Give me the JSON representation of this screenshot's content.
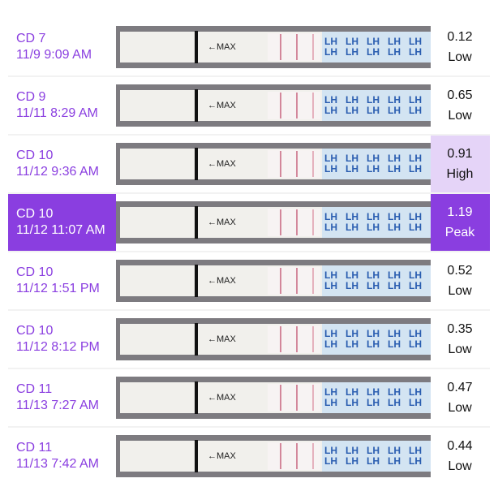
{
  "strip_label": "←MAX",
  "strip_brand": "LH",
  "rows": [
    {
      "cycle_day": "CD 7",
      "datetime": "11/9 9:09 AM",
      "value": 0.12,
      "level": "Low"
    },
    {
      "cycle_day": "CD 9",
      "datetime": "11/11 8:29 AM",
      "value": 0.65,
      "level": "Low"
    },
    {
      "cycle_day": "CD 10",
      "datetime": "11/12 9:36 AM",
      "value": 0.91,
      "level": "High"
    },
    {
      "cycle_day": "CD 10",
      "datetime": "11/12 11:07 AM",
      "value": 1.19,
      "level": "Peak"
    },
    {
      "cycle_day": "CD 10",
      "datetime": "11/12 1:51 PM",
      "value": 0.52,
      "level": "Low"
    },
    {
      "cycle_day": "CD 10",
      "datetime": "11/12 8:12 PM",
      "value": 0.35,
      "level": "Low"
    },
    {
      "cycle_day": "CD 11",
      "datetime": "11/13 7:27 AM",
      "value": 0.47,
      "level": "Low"
    },
    {
      "cycle_day": "CD 11",
      "datetime": "11/13 7:42 AM",
      "value": 0.44,
      "level": "Low"
    }
  ]
}
